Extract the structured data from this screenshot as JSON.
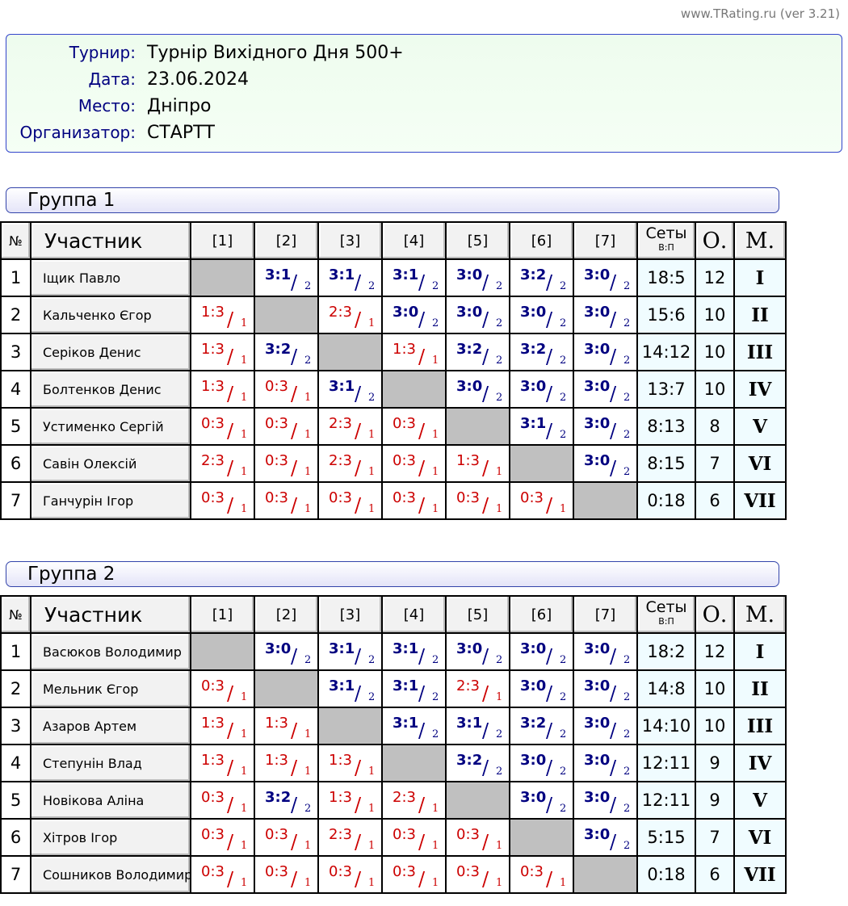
{
  "version": "www.TRating.ru (ver 3.21)",
  "info": [
    {
      "label": "Турнир:",
      "value": "Турнір Вихідного Дня 500+"
    },
    {
      "label": "Дата:",
      "value": "23.06.2024"
    },
    {
      "label": "Место:",
      "value": "Дніпро"
    },
    {
      "label": "Организатор:",
      "value": "СТАРТТ"
    }
  ],
  "headers": {
    "num": "№",
    "name": "Участник",
    "cols": [
      "[1]",
      "[2]",
      "[3]",
      "[4]",
      "[5]",
      "[6]",
      "[7]"
    ],
    "sets": "Сеты",
    "sets_sub": "В:П",
    "points": "О.",
    "place": "М."
  },
  "colors": {
    "win": "#000080",
    "loss": "#cc0000",
    "self": "#c0c0c0"
  },
  "groups": [
    {
      "title": "Группа 1",
      "rows": [
        {
          "no": "1",
          "name": "Іщик Павло",
          "res": [
            null,
            [
              "3:1",
              "2"
            ],
            [
              "3:1",
              "2"
            ],
            [
              "3:1",
              "2"
            ],
            [
              "3:0",
              "2"
            ],
            [
              "3:2",
              "2"
            ],
            [
              "3:0",
              "2"
            ]
          ],
          "sets": "18:5",
          "points": "12",
          "place": "I"
        },
        {
          "no": "2",
          "name": "Кальченко Єгор",
          "res": [
            [
              "1:3",
              "1"
            ],
            null,
            [
              "2:3",
              "1"
            ],
            [
              "3:0",
              "2"
            ],
            [
              "3:0",
              "2"
            ],
            [
              "3:0",
              "2"
            ],
            [
              "3:0",
              "2"
            ]
          ],
          "sets": "15:6",
          "points": "10",
          "place": "II"
        },
        {
          "no": "3",
          "name": "Серіков Денис",
          "res": [
            [
              "1:3",
              "1"
            ],
            [
              "3:2",
              "2"
            ],
            null,
            [
              "1:3",
              "1"
            ],
            [
              "3:2",
              "2"
            ],
            [
              "3:2",
              "2"
            ],
            [
              "3:0",
              "2"
            ]
          ],
          "sets": "14:12",
          "points": "10",
          "place": "III"
        },
        {
          "no": "4",
          "name": "Болтенков Денис",
          "res": [
            [
              "1:3",
              "1"
            ],
            [
              "0:3",
              "1"
            ],
            [
              "3:1",
              "2"
            ],
            null,
            [
              "3:0",
              "2"
            ],
            [
              "3:0",
              "2"
            ],
            [
              "3:0",
              "2"
            ]
          ],
          "sets": "13:7",
          "points": "10",
          "place": "IV"
        },
        {
          "no": "5",
          "name": "Устименко Сергій",
          "res": [
            [
              "0:3",
              "1"
            ],
            [
              "0:3",
              "1"
            ],
            [
              "2:3",
              "1"
            ],
            [
              "0:3",
              "1"
            ],
            null,
            [
              "3:1",
              "2"
            ],
            [
              "3:0",
              "2"
            ]
          ],
          "sets": "8:13",
          "points": "8",
          "place": "V"
        },
        {
          "no": "6",
          "name": "Савін Олексій",
          "res": [
            [
              "2:3",
              "1"
            ],
            [
              "0:3",
              "1"
            ],
            [
              "2:3",
              "1"
            ],
            [
              "0:3",
              "1"
            ],
            [
              "1:3",
              "1"
            ],
            null,
            [
              "3:0",
              "2"
            ]
          ],
          "sets": "8:15",
          "points": "7",
          "place": "VI"
        },
        {
          "no": "7",
          "name": "Ганчурін Ігор",
          "res": [
            [
              "0:3",
              "1"
            ],
            [
              "0:3",
              "1"
            ],
            [
              "0:3",
              "1"
            ],
            [
              "0:3",
              "1"
            ],
            [
              "0:3",
              "1"
            ],
            [
              "0:3",
              "1"
            ],
            null
          ],
          "sets": "0:18",
          "points": "6",
          "place": "VII"
        }
      ]
    },
    {
      "title": "Группа 2",
      "rows": [
        {
          "no": "1",
          "name": "Васюков Володимир",
          "res": [
            null,
            [
              "3:0",
              "2"
            ],
            [
              "3:1",
              "2"
            ],
            [
              "3:1",
              "2"
            ],
            [
              "3:0",
              "2"
            ],
            [
              "3:0",
              "2"
            ],
            [
              "3:0",
              "2"
            ]
          ],
          "sets": "18:2",
          "points": "12",
          "place": "I"
        },
        {
          "no": "2",
          "name": "Мельник Єгор",
          "res": [
            [
              "0:3",
              "1"
            ],
            null,
            [
              "3:1",
              "2"
            ],
            [
              "3:1",
              "2"
            ],
            [
              "2:3",
              "1"
            ],
            [
              "3:0",
              "2"
            ],
            [
              "3:0",
              "2"
            ]
          ],
          "sets": "14:8",
          "points": "10",
          "place": "II"
        },
        {
          "no": "3",
          "name": "Азаров Артем",
          "res": [
            [
              "1:3",
              "1"
            ],
            [
              "1:3",
              "1"
            ],
            null,
            [
              "3:1",
              "2"
            ],
            [
              "3:1",
              "2"
            ],
            [
              "3:2",
              "2"
            ],
            [
              "3:0",
              "2"
            ]
          ],
          "sets": "14:10",
          "points": "10",
          "place": "III"
        },
        {
          "no": "4",
          "name": "Степунін Влад",
          "res": [
            [
              "1:3",
              "1"
            ],
            [
              "1:3",
              "1"
            ],
            [
              "1:3",
              "1"
            ],
            null,
            [
              "3:2",
              "2"
            ],
            [
              "3:0",
              "2"
            ],
            [
              "3:0",
              "2"
            ]
          ],
          "sets": "12:11",
          "points": "9",
          "place": "IV"
        },
        {
          "no": "5",
          "name": "Новікова Аліна",
          "res": [
            [
              "0:3",
              "1"
            ],
            [
              "3:2",
              "2"
            ],
            [
              "1:3",
              "1"
            ],
            [
              "2:3",
              "1"
            ],
            null,
            [
              "3:0",
              "2"
            ],
            [
              "3:0",
              "2"
            ]
          ],
          "sets": "12:11",
          "points": "9",
          "place": "V"
        },
        {
          "no": "6",
          "name": "Хітров Ігор",
          "res": [
            [
              "0:3",
              "1"
            ],
            [
              "0:3",
              "1"
            ],
            [
              "2:3",
              "1"
            ],
            [
              "0:3",
              "1"
            ],
            [
              "0:3",
              "1"
            ],
            null,
            [
              "3:0",
              "2"
            ]
          ],
          "sets": "5:15",
          "points": "7",
          "place": "VI"
        },
        {
          "no": "7",
          "name": "Сошников Володимир",
          "res": [
            [
              "0:3",
              "1"
            ],
            [
              "0:3",
              "1"
            ],
            [
              "0:3",
              "1"
            ],
            [
              "0:3",
              "1"
            ],
            [
              "0:3",
              "1"
            ],
            [
              "0:3",
              "1"
            ],
            null
          ],
          "sets": "0:18",
          "points": "6",
          "place": "VII"
        }
      ]
    }
  ]
}
